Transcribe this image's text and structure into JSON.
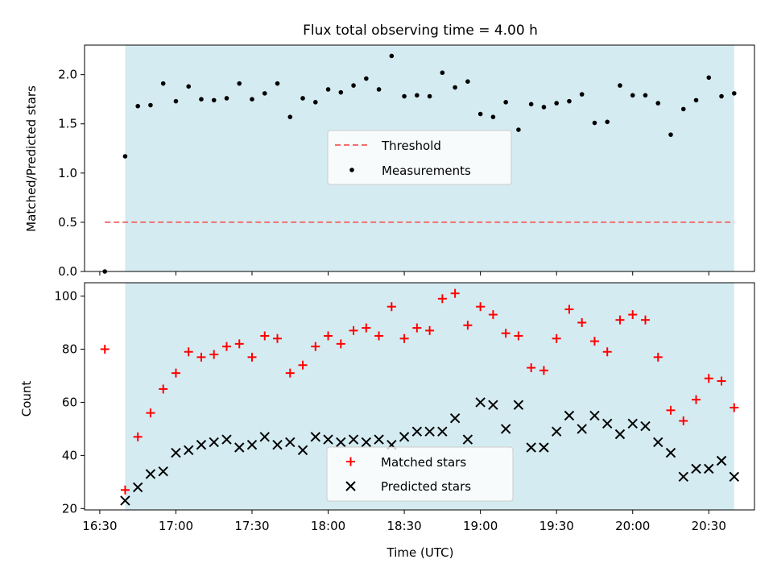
{
  "chart_data": [
    {
      "type": "scatter",
      "title": "Flux total observing time = 4.00 h",
      "ylabel": "Matched/Predicted stars",
      "xlabel": "",
      "ylim": [
        0,
        2.3
      ],
      "yticks": [
        "0.0",
        "0.5",
        "1.0",
        "1.5",
        "2.0"
      ],
      "yticks_values": [
        0,
        0.5,
        1.0,
        1.5,
        2.0
      ],
      "shaded_interval": [
        "16:40",
        "20:40"
      ],
      "shade_color": "#d4ebf1",
      "legend_position": "center",
      "threshold": {
        "name": "Threshold",
        "value": 0.5,
        "x_range": [
          "16:32",
          "20:40"
        ],
        "color": "#f07070"
      },
      "series": [
        {
          "name": "Measurements",
          "color": "#000000",
          "x": [
            "16:32",
            "16:40",
            "16:45",
            "16:50",
            "16:55",
            "17:00",
            "17:05",
            "17:10",
            "17:15",
            "17:20",
            "17:25",
            "17:30",
            "17:35",
            "17:40",
            "17:45",
            "17:50",
            "17:55",
            "18:00",
            "18:05",
            "18:10",
            "18:15",
            "18:20",
            "18:25",
            "18:30",
            "18:35",
            "18:40",
            "18:45",
            "18:50",
            "18:55",
            "19:00",
            "19:05",
            "19:10",
            "19:15",
            "19:20",
            "19:25",
            "19:30",
            "19:35",
            "19:40",
            "19:45",
            "19:50",
            "19:55",
            "20:00",
            "20:05",
            "20:10",
            "20:15",
            "20:20",
            "20:25",
            "20:30",
            "20:35",
            "20:40"
          ],
          "values": [
            0.0,
            1.17,
            1.68,
            1.69,
            1.91,
            1.73,
            1.88,
            1.75,
            1.74,
            1.76,
            1.91,
            1.75,
            1.81,
            1.91,
            1.57,
            1.76,
            1.72,
            1.85,
            1.82,
            1.89,
            1.96,
            1.85,
            2.19,
            1.78,
            1.79,
            1.78,
            2.02,
            1.87,
            1.93,
            1.6,
            1.57,
            1.72,
            1.44,
            1.7,
            1.67,
            1.71,
            1.73,
            1.8,
            1.51,
            1.52,
            1.89,
            1.79,
            1.79,
            1.71,
            1.39,
            1.65,
            1.74,
            1.97,
            1.78,
            1.81
          ]
        }
      ]
    },
    {
      "type": "scatter",
      "title": "",
      "ylabel": "Count",
      "xlabel": "Time (UTC)",
      "ylim": [
        19.5,
        105
      ],
      "yticks": [
        "20",
        "40",
        "60",
        "80",
        "100"
      ],
      "yticks_values": [
        20,
        40,
        60,
        80,
        100
      ],
      "xlim": [
        "16:24",
        "20:48"
      ],
      "xticks": [
        "16:30",
        "17:00",
        "17:30",
        "18:00",
        "18:30",
        "19:00",
        "19:30",
        "20:00",
        "20:30"
      ],
      "shaded_interval": [
        "16:40",
        "20:40"
      ],
      "shade_color": "#d4ebf1",
      "legend_position": "lower center",
      "series": [
        {
          "name": "Matched stars",
          "marker": "plus",
          "color": "#ff0000",
          "x": [
            "16:32",
            "16:40",
            "16:45",
            "16:50",
            "16:55",
            "17:00",
            "17:05",
            "17:10",
            "17:15",
            "17:20",
            "17:25",
            "17:30",
            "17:35",
            "17:40",
            "17:45",
            "17:50",
            "17:55",
            "18:00",
            "18:05",
            "18:10",
            "18:15",
            "18:20",
            "18:25",
            "18:30",
            "18:35",
            "18:40",
            "18:45",
            "18:50",
            "18:55",
            "19:00",
            "19:05",
            "19:10",
            "19:15",
            "19:20",
            "19:25",
            "19:30",
            "19:35",
            "19:40",
            "19:45",
            "19:50",
            "19:55",
            "20:00",
            "20:05",
            "20:10",
            "20:15",
            "20:20",
            "20:25",
            "20:30",
            "20:35",
            "20:40"
          ],
          "values": [
            80,
            27,
            47,
            56,
            65,
            71,
            79,
            77,
            78,
            81,
            82,
            77,
            85,
            84,
            71,
            74,
            81,
            85,
            82,
            87,
            88,
            85,
            96,
            84,
            88,
            87,
            99,
            101,
            89,
            96,
            93,
            86,
            85,
            73,
            72,
            84,
            95,
            90,
            83,
            79,
            91,
            93,
            91,
            77,
            57,
            53,
            61,
            69,
            68,
            58
          ]
        },
        {
          "name": "Predicted stars",
          "marker": "x",
          "color": "#000000",
          "x": [
            "16:40",
            "16:45",
            "16:50",
            "16:55",
            "17:00",
            "17:05",
            "17:10",
            "17:15",
            "17:20",
            "17:25",
            "17:30",
            "17:35",
            "17:40",
            "17:45",
            "17:50",
            "17:55",
            "18:00",
            "18:05",
            "18:10",
            "18:15",
            "18:20",
            "18:25",
            "18:30",
            "18:35",
            "18:40",
            "18:45",
            "18:50",
            "18:55",
            "19:00",
            "19:05",
            "19:10",
            "19:15",
            "19:20",
            "19:25",
            "19:30",
            "19:35",
            "19:40",
            "19:45",
            "19:50",
            "19:55",
            "20:00",
            "20:05",
            "20:10",
            "20:15",
            "20:20",
            "20:25",
            "20:30",
            "20:35",
            "20:40"
          ],
          "values": [
            23,
            28,
            33,
            34,
            41,
            42,
            44,
            45,
            46,
            43,
            44,
            47,
            44,
            45,
            42,
            47,
            46,
            45,
            46,
            45,
            46,
            44,
            47,
            49,
            49,
            49,
            54,
            46,
            60,
            59,
            50,
            59,
            43,
            43,
            49,
            55,
            50,
            55,
            52,
            48,
            52,
            51,
            45,
            41,
            32,
            35,
            35,
            38,
            32
          ]
        }
      ]
    }
  ]
}
